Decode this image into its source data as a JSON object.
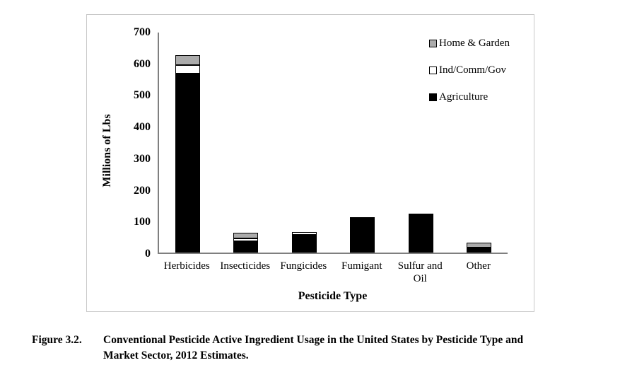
{
  "figure": {
    "caption_label": "Figure 3.2.",
    "caption_text": "Conventional Pesticide Active Ingredient Usage in the United States by Pesticide Type and Market Sector, 2012 Estimates."
  },
  "colors": {
    "agriculture": "#000000",
    "ind_comm_gov": "#ffffff",
    "home_garden": "#ababab",
    "bar_border": "#000000",
    "axis": "#7f7f7f",
    "box_border": "#c9c9c9"
  },
  "chart_data": {
    "type": "bar",
    "stacked": true,
    "title": "",
    "xlabel": "Pesticide Type",
    "ylabel": "Millions of Lbs",
    "ylim": [
      0,
      700
    ],
    "yticks": [
      0,
      100,
      200,
      300,
      400,
      500,
      600,
      700
    ],
    "grid": false,
    "legend_position": "upper-right-inside",
    "categories": [
      "Herbicides",
      "Insecticides",
      "Fungicides",
      "Fumigant",
      "Sulfur and Oil",
      "Other"
    ],
    "series": [
      {
        "name": "Agriculture",
        "color_key": "agriculture",
        "values": [
          565,
          36,
          55,
          111,
          124,
          15
        ]
      },
      {
        "name": "Ind/Comm/Gov",
        "color_key": "ind_comm_gov",
        "values": [
          27,
          9,
          11,
          0,
          0,
          0
        ]
      },
      {
        "name": "Home & Garden",
        "color_key": "home_garden",
        "values": [
          33,
          18,
          0,
          0,
          0,
          16
        ]
      }
    ],
    "legend_order": [
      "Home & Garden",
      "Ind/Comm/Gov",
      "Agriculture"
    ]
  }
}
